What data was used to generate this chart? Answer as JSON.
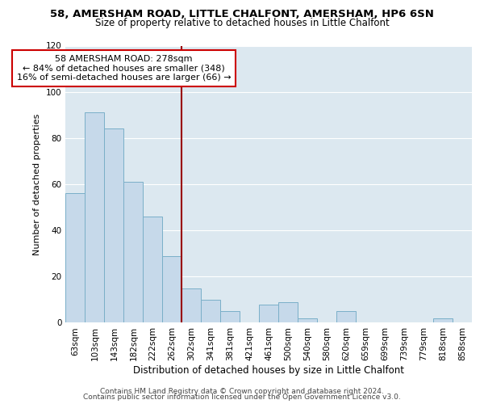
{
  "title1": "58, AMERSHAM ROAD, LITTLE CHALFONT, AMERSHAM, HP6 6SN",
  "title2": "Size of property relative to detached houses in Little Chalfont",
  "xlabel": "Distribution of detached houses by size in Little Chalfont",
  "ylabel": "Number of detached properties",
  "bar_labels": [
    "63sqm",
    "103sqm",
    "143sqm",
    "182sqm",
    "222sqm",
    "262sqm",
    "302sqm",
    "341sqm",
    "381sqm",
    "421sqm",
    "461sqm",
    "500sqm",
    "540sqm",
    "580sqm",
    "620sqm",
    "659sqm",
    "699sqm",
    "739sqm",
    "779sqm",
    "818sqm",
    "858sqm"
  ],
  "bar_values": [
    56,
    91,
    84,
    61,
    46,
    29,
    15,
    10,
    5,
    0,
    8,
    9,
    2,
    0,
    5,
    0,
    0,
    0,
    0,
    2,
    0
  ],
  "bar_color": "#c6d9ea",
  "bar_edge_color": "#7aafc8",
  "vline_x": 5.5,
  "vline_color": "#990000",
  "annotation_title": "58 AMERSHAM ROAD: 278sqm",
  "annotation_line1": "← 84% of detached houses are smaller (348)",
  "annotation_line2": "16% of semi-detached houses are larger (66) →",
  "annotation_box_edge": "#cc0000",
  "ylim": [
    0,
    120
  ],
  "yticks": [
    0,
    20,
    40,
    60,
    80,
    100,
    120
  ],
  "footer1": "Contains HM Land Registry data © Crown copyright and database right 2024.",
  "footer2": "Contains public sector information licensed under the Open Government Licence v3.0.",
  "plot_bg_color": "#dce8f0",
  "fig_bg_color": "#ffffff",
  "grid_color": "#ffffff",
  "title1_fontsize": 9.5,
  "title2_fontsize": 8.5,
  "xlabel_fontsize": 8.5,
  "ylabel_fontsize": 8,
  "tick_fontsize": 7.5,
  "footer_fontsize": 6.5,
  "annot_fontsize": 8
}
